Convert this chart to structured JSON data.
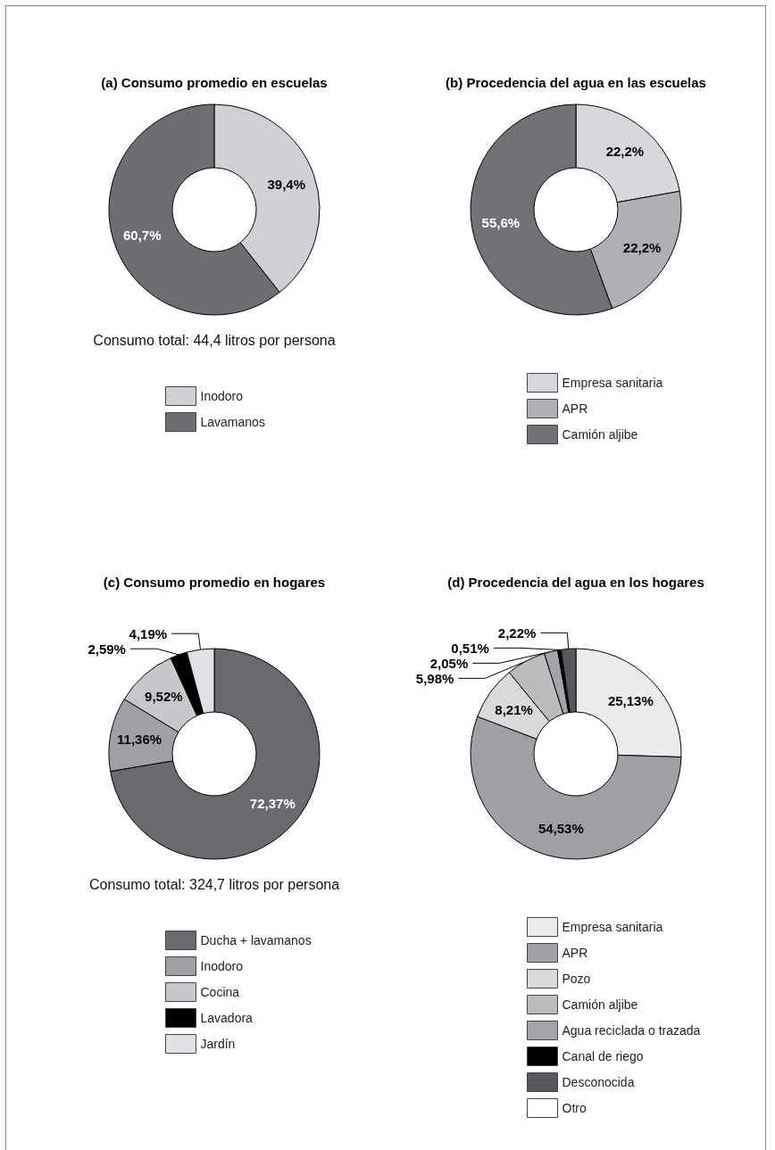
{
  "chart_data": [
    {
      "type": "donut",
      "title": "(a) Consumo promedio en escuelas",
      "categories": [
        "Inodoro",
        "Lavamanos"
      ],
      "values": [
        39.4,
        60.7
      ],
      "colors": [
        "#d0d0d4",
        "#6e6e72"
      ],
      "value_labels": [
        "39,4%",
        "60,7%"
      ],
      "annotations": [
        "Consumo total: 44,4 litros por persona"
      ],
      "legend": "bottom"
    },
    {
      "type": "donut",
      "title": "(b) Procedencia del agua en las escuelas",
      "categories": [
        "Empresa sanitaria",
        "APR",
        "Camión aljibe"
      ],
      "values": [
        22.2,
        22.2,
        55.6
      ],
      "colors": [
        "#d8d8dc",
        "#b0b0b4",
        "#727276"
      ],
      "value_labels": [
        "22,2%",
        "22,2%",
        "55,6%"
      ],
      "legend": "bottom"
    },
    {
      "type": "donut",
      "title": "(c) Consumo promedio en hogares",
      "categories": [
        "Ducha + lavamanos",
        "Inodoro",
        "Cocina",
        "Lavadora",
        "Jardín"
      ],
      "values": [
        72.37,
        11.36,
        9.52,
        2.59,
        4.19
      ],
      "colors": [
        "#6a6a6e",
        "#a0a0a4",
        "#c8c8cc",
        "#000000",
        "#e2e2e6"
      ],
      "value_labels": [
        "72,37%",
        "11,36%",
        "9,52%",
        "2,59%",
        "4,19%"
      ],
      "annotations": [
        "Consumo total: 324,7 litros por persona"
      ],
      "legend": "bottom"
    },
    {
      "type": "donut",
      "title": "(d) Procedencia del agua en los hogares",
      "categories": [
        "Empresa sanitaria",
        "APR",
        "Pozo",
        "Camión aljibe",
        "Agua reciclada o trazada",
        "Canal de riego",
        "Desconocida",
        "Otro"
      ],
      "values": [
        25.13,
        54.53,
        8.21,
        5.98,
        2.05,
        0.51,
        2.22,
        null
      ],
      "colors": [
        "#ebebed",
        "#a0a0a4",
        "#dadadd",
        "#bcbcbf",
        "#a4a4a8",
        "#000000",
        "#58585c",
        "#ffffff"
      ],
      "value_labels": [
        "25,13%",
        "54,53%",
        "8,21%",
        "5,98%",
        "2,05%",
        "0,51%",
        "2,22%",
        null
      ],
      "legend": "bottom"
    }
  ]
}
